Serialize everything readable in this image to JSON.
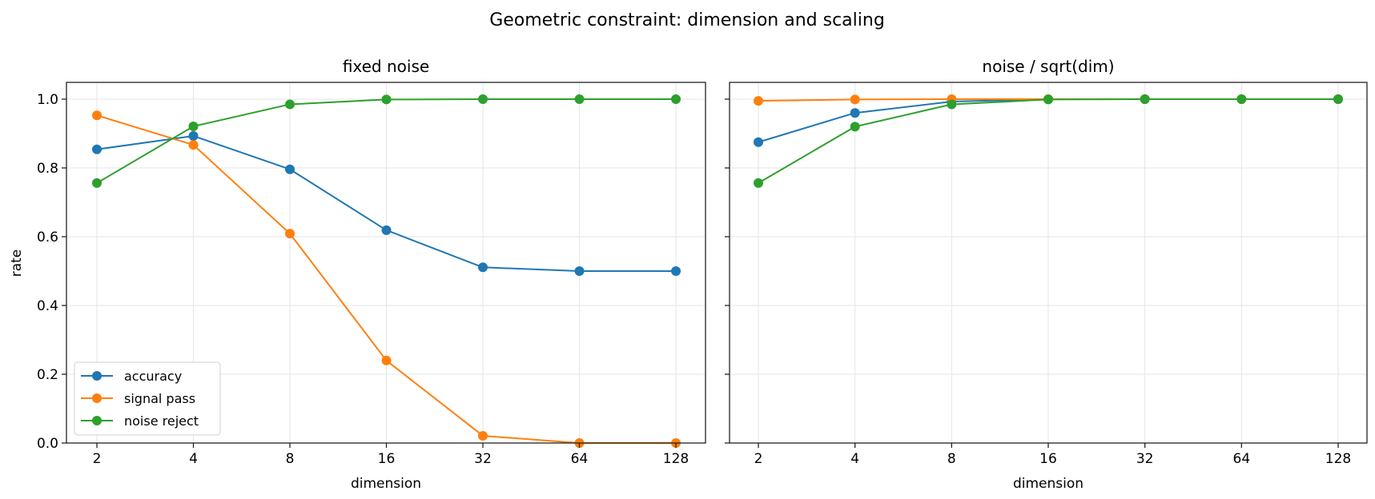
{
  "figure": {
    "suptitle": "Geometric constraint: dimension and scaling",
    "ylabel": "rate",
    "xlabel": "dimension"
  },
  "legend": {
    "items": [
      {
        "label": "accuracy",
        "color": "#1f77b4"
      },
      {
        "label": "signal pass",
        "color": "#ff7f0e"
      },
      {
        "label": "noise reject",
        "color": "#2ca02c"
      }
    ]
  },
  "chart_data": [
    {
      "type": "line",
      "title": "fixed noise",
      "xlabel": "dimension",
      "ylabel": "rate",
      "xscale": "log2",
      "x": [
        2,
        4,
        8,
        16,
        32,
        64,
        128
      ],
      "x_tick_labels": [
        "2",
        "4",
        "8",
        "16",
        "32",
        "64",
        "128"
      ],
      "y_tick_labels": [
        "0.0",
        "0.2",
        "0.4",
        "0.6",
        "0.8",
        "1.0"
      ],
      "ylim": [
        0,
        1.05
      ],
      "grid": true,
      "legend_position": "lower left",
      "series": [
        {
          "name": "accuracy",
          "color": "#1f77b4",
          "values": [
            0.854,
            0.893,
            0.796,
            0.619,
            0.511,
            0.5,
            0.5
          ]
        },
        {
          "name": "signal pass",
          "color": "#ff7f0e",
          "values": [
            0.953,
            0.867,
            0.609,
            0.24,
            0.021,
            0.0,
            0.0
          ]
        },
        {
          "name": "noise reject",
          "color": "#2ca02c",
          "values": [
            0.756,
            0.921,
            0.985,
            0.999,
            1.0,
            1.0,
            1.0
          ]
        }
      ]
    },
    {
      "type": "line",
      "title": "noise / sqrt(dim)",
      "xlabel": "dimension",
      "ylabel": "",
      "xscale": "log2",
      "x": [
        2,
        4,
        8,
        16,
        32,
        64,
        128
      ],
      "x_tick_labels": [
        "2",
        "4",
        "8",
        "16",
        "32",
        "64",
        "128"
      ],
      "y_tick_labels": [],
      "ylim": [
        0,
        1.05
      ],
      "grid": true,
      "series": [
        {
          "name": "accuracy",
          "color": "#1f77b4",
          "values": [
            0.875,
            0.96,
            0.993,
            1.0,
            1.0,
            1.0,
            1.0
          ]
        },
        {
          "name": "signal pass",
          "color": "#ff7f0e",
          "values": [
            0.995,
            0.999,
            1.0,
            1.0,
            1.0,
            1.0,
            1.0
          ]
        },
        {
          "name": "noise reject",
          "color": "#2ca02c",
          "values": [
            0.756,
            0.92,
            0.985,
            0.999,
            1.0,
            1.0,
            1.0
          ]
        }
      ]
    }
  ]
}
